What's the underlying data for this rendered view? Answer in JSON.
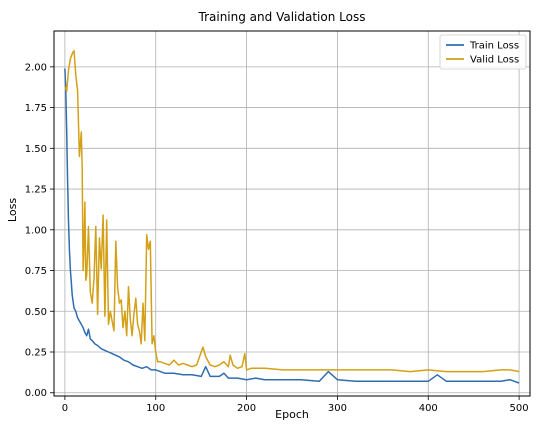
{
  "chart_data": {
    "type": "line",
    "title": "Training and Validation Loss",
    "xlabel": "Epoch",
    "ylabel": "Loss",
    "xlim": [
      -12,
      512
    ],
    "ylim": [
      -0.02,
      2.22
    ],
    "xticks": [
      0,
      100,
      200,
      300,
      400,
      500
    ],
    "yticks": [
      0.0,
      0.25,
      0.5,
      0.75,
      1.0,
      1.25,
      1.5,
      1.75,
      2.0
    ],
    "grid": true,
    "legend_position": "top-right",
    "series": [
      {
        "name": "Train Loss",
        "color": "#2f6db0",
        "x": [
          0,
          1,
          2,
          3,
          4,
          5,
          6,
          7,
          8,
          9,
          10,
          12,
          14,
          16,
          18,
          20,
          22,
          24,
          26,
          28,
          30,
          33,
          36,
          40,
          44,
          48,
          52,
          56,
          60,
          65,
          70,
          75,
          80,
          85,
          90,
          95,
          100,
          105,
          110,
          120,
          130,
          140,
          150,
          155,
          160,
          170,
          175,
          180,
          190,
          200,
          210,
          220,
          240,
          260,
          280,
          290,
          300,
          320,
          340,
          360,
          380,
          400,
          410,
          420,
          440,
          460,
          480,
          490,
          500
        ],
        "y": [
          1.99,
          1.85,
          1.6,
          1.3,
          1.05,
          0.88,
          0.75,
          0.68,
          0.6,
          0.56,
          0.52,
          0.5,
          0.46,
          0.44,
          0.42,
          0.4,
          0.37,
          0.35,
          0.39,
          0.33,
          0.32,
          0.3,
          0.29,
          0.27,
          0.26,
          0.25,
          0.24,
          0.23,
          0.22,
          0.2,
          0.19,
          0.17,
          0.16,
          0.15,
          0.16,
          0.14,
          0.14,
          0.13,
          0.12,
          0.12,
          0.11,
          0.11,
          0.1,
          0.16,
          0.1,
          0.1,
          0.12,
          0.09,
          0.09,
          0.08,
          0.09,
          0.08,
          0.08,
          0.08,
          0.07,
          0.13,
          0.08,
          0.07,
          0.07,
          0.07,
          0.07,
          0.07,
          0.11,
          0.07,
          0.07,
          0.07,
          0.07,
          0.08,
          0.06
        ]
      },
      {
        "name": "Valid Loss",
        "color": "#d4a017",
        "x": [
          0,
          2,
          4,
          6,
          8,
          10,
          12,
          14,
          16,
          18,
          19,
          20,
          21,
          22,
          23,
          24,
          26,
          28,
          30,
          32,
          34,
          36,
          38,
          40,
          42,
          44,
          46,
          48,
          50,
          52,
          54,
          56,
          58,
          60,
          62,
          64,
          66,
          68,
          70,
          72,
          74,
          76,
          78,
          80,
          82,
          84,
          86,
          88,
          90,
          92,
          94,
          96,
          98,
          100,
          102,
          105,
          110,
          115,
          120,
          125,
          130,
          135,
          140,
          145,
          150,
          152,
          155,
          160,
          165,
          170,
          175,
          180,
          182,
          185,
          190,
          195,
          198,
          200,
          205,
          210,
          220,
          240,
          260,
          280,
          300,
          320,
          340,
          360,
          380,
          400,
          420,
          440,
          460,
          480,
          490,
          500
        ],
        "y": [
          1.88,
          1.85,
          1.98,
          2.05,
          2.08,
          2.1,
          1.95,
          1.85,
          1.45,
          1.6,
          1.37,
          0.75,
          0.9,
          1.17,
          0.69,
          0.72,
          1.02,
          0.62,
          0.55,
          0.7,
          1.02,
          0.48,
          0.95,
          0.76,
          1.09,
          0.47,
          1.06,
          0.42,
          0.5,
          0.44,
          0.38,
          0.93,
          0.65,
          0.55,
          0.57,
          0.4,
          0.5,
          0.35,
          0.65,
          0.45,
          0.35,
          0.48,
          0.58,
          0.42,
          0.38,
          0.3,
          0.55,
          0.32,
          0.97,
          0.88,
          0.93,
          0.3,
          0.35,
          0.25,
          0.19,
          0.19,
          0.18,
          0.17,
          0.2,
          0.17,
          0.18,
          0.17,
          0.16,
          0.17,
          0.25,
          0.28,
          0.22,
          0.17,
          0.16,
          0.17,
          0.19,
          0.16,
          0.23,
          0.17,
          0.15,
          0.16,
          0.24,
          0.14,
          0.15,
          0.15,
          0.15,
          0.14,
          0.14,
          0.14,
          0.14,
          0.14,
          0.14,
          0.14,
          0.13,
          0.14,
          0.13,
          0.13,
          0.13,
          0.14,
          0.14,
          0.13
        ]
      }
    ]
  }
}
